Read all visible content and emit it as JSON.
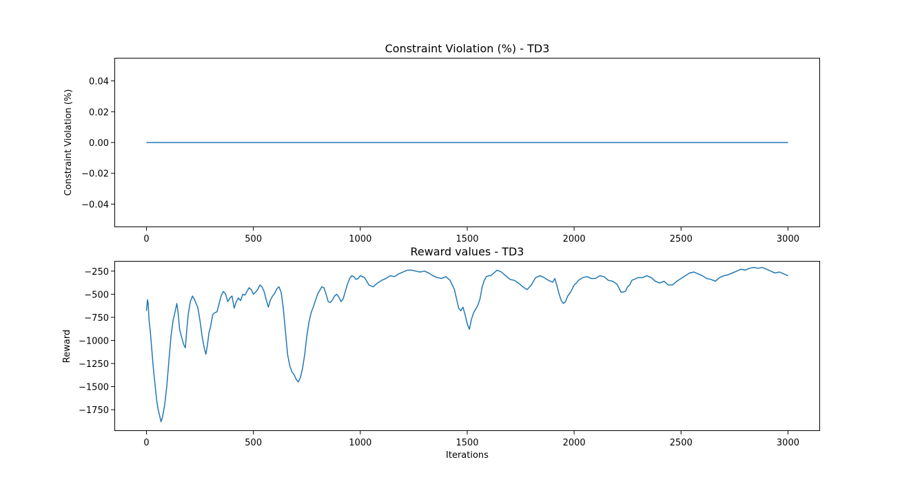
{
  "chart_data": [
    {
      "type": "line",
      "title": "Constraint Violation (%) - TD3",
      "xlabel": "",
      "ylabel": "Constraint Violation (%)",
      "xlim": [
        -150,
        3150
      ],
      "ylim": [
        -0.055,
        0.055
      ],
      "xticks": [
        0,
        500,
        1000,
        1500,
        2000,
        2500,
        3000
      ],
      "xtick_labels": [
        "0",
        "500",
        "1000",
        "1500",
        "2000",
        "2500",
        "3000"
      ],
      "yticks": [
        -0.04,
        -0.02,
        0.0,
        0.02,
        0.04
      ],
      "ytick_labels": [
        "−0.04",
        "−0.02",
        "0.00",
        "0.02",
        "0.04"
      ],
      "grid": false,
      "series": [
        {
          "color": "#1f77b4",
          "x": [
            0,
            3000
          ],
          "y": [
            0,
            0
          ]
        }
      ]
    },
    {
      "type": "line",
      "title": "Reward values - TD3",
      "xlabel": "Iterations",
      "ylabel": "Reward",
      "xlim": [
        -150,
        3150
      ],
      "ylim": [
        -1980,
        -140
      ],
      "xticks": [
        0,
        500,
        1000,
        1500,
        2000,
        2500,
        3000
      ],
      "xtick_labels": [
        "0",
        "500",
        "1000",
        "1500",
        "2000",
        "2500",
        "3000"
      ],
      "yticks": [
        -250,
        -500,
        -750,
        -1000,
        -1250,
        -1500,
        -1750
      ],
      "ytick_labels": [
        "−250",
        "−500",
        "−750",
        "−1000",
        "−1250",
        "−1500",
        "−1750"
      ],
      "grid": false,
      "series": [
        {
          "color": "#1f77b4",
          "x": [
            0,
            5,
            8,
            12,
            18,
            25,
            32,
            40,
            48,
            55,
            62,
            68,
            75,
            85,
            95,
            105,
            115,
            125,
            135,
            142,
            148,
            155,
            165,
            175,
            182,
            188,
            195,
            205,
            215,
            225,
            232,
            240,
            250,
            260,
            270,
            278,
            285,
            292,
            300,
            310,
            320,
            330,
            340,
            350,
            360,
            370,
            380,
            390,
            400,
            410,
            420,
            430,
            440,
            450,
            460,
            470,
            480,
            490,
            500,
            510,
            520,
            530,
            540,
            550,
            560,
            570,
            580,
            590,
            600,
            610,
            620,
            630,
            640,
            650,
            660,
            670,
            680,
            690,
            700,
            710,
            720,
            730,
            740,
            750,
            760,
            770,
            780,
            790,
            800,
            810,
            820,
            830,
            840,
            850,
            860,
            870,
            880,
            890,
            900,
            910,
            920,
            930,
            940,
            950,
            960,
            970,
            980,
            990,
            1000,
            1020,
            1040,
            1060,
            1080,
            1100,
            1120,
            1140,
            1160,
            1180,
            1200,
            1220,
            1240,
            1260,
            1280,
            1300,
            1320,
            1340,
            1360,
            1380,
            1400,
            1420,
            1440,
            1450,
            1460,
            1470,
            1480,
            1490,
            1500,
            1510,
            1520,
            1530,
            1540,
            1550,
            1560,
            1570,
            1580,
            1590,
            1600,
            1610,
            1620,
            1640,
            1660,
            1680,
            1700,
            1720,
            1740,
            1760,
            1780,
            1800,
            1820,
            1840,
            1860,
            1880,
            1900,
            1910,
            1920,
            1930,
            1940,
            1950,
            1960,
            1970,
            1980,
            1990,
            2000,
            2010,
            2020,
            2040,
            2060,
            2080,
            2100,
            2120,
            2140,
            2160,
            2180,
            2200,
            2220,
            2240,
            2250,
            2260,
            2270,
            2280,
            2300,
            2320,
            2340,
            2360,
            2380,
            2400,
            2420,
            2440,
            2460,
            2480,
            2500,
            2520,
            2540,
            2560,
            2580,
            2600,
            2620,
            2640,
            2660,
            2680,
            2700,
            2720,
            2740,
            2760,
            2780,
            2800,
            2820,
            2840,
            2860,
            2880,
            2900,
            2920,
            2940,
            2960,
            2980,
            3000
          ],
          "y": [
            -680,
            -560,
            -600,
            -780,
            -900,
            -1100,
            -1300,
            -1480,
            -1650,
            -1750,
            -1820,
            -1880,
            -1830,
            -1700,
            -1500,
            -1220,
            -950,
            -780,
            -680,
            -600,
            -700,
            -880,
            -970,
            -1050,
            -1080,
            -900,
            -720,
            -580,
            -520,
            -560,
            -600,
            -640,
            -780,
            -950,
            -1080,
            -1150,
            -1050,
            -920,
            -850,
            -720,
            -700,
            -690,
            -600,
            -510,
            -470,
            -500,
            -580,
            -540,
            -520,
            -650,
            -580,
            -540,
            -570,
            -500,
            -510,
            -470,
            -430,
            -450,
            -500,
            -480,
            -450,
            -400,
            -420,
            -470,
            -560,
            -640,
            -560,
            -520,
            -490,
            -440,
            -420,
            -480,
            -650,
            -900,
            -1150,
            -1270,
            -1340,
            -1370,
            -1420,
            -1450,
            -1400,
            -1300,
            -1150,
            -950,
            -800,
            -700,
            -640,
            -570,
            -500,
            -460,
            -420,
            -430,
            -500,
            -580,
            -590,
            -560,
            -520,
            -500,
            -530,
            -580,
            -550,
            -470,
            -390,
            -330,
            -300,
            -310,
            -340,
            -330,
            -300,
            -320,
            -400,
            -420,
            -380,
            -350,
            -330,
            -300,
            -310,
            -280,
            -260,
            -240,
            -240,
            -250,
            -260,
            -250,
            -270,
            -300,
            -320,
            -330,
            -310,
            -350,
            -450,
            -550,
            -650,
            -680,
            -640,
            -720,
            -820,
            -880,
            -770,
            -700,
            -660,
            -620,
            -550,
            -420,
            -350,
            -310,
            -300,
            -300,
            -280,
            -240,
            -260,
            -300,
            -340,
            -350,
            -380,
            -420,
            -450,
            -400,
            -320,
            -300,
            -320,
            -350,
            -370,
            -330,
            -410,
            -500,
            -570,
            -600,
            -580,
            -520,
            -490,
            -450,
            -400,
            -380,
            -350,
            -320,
            -310,
            -330,
            -330,
            -300,
            -310,
            -350,
            -360,
            -390,
            -480,
            -470,
            -420,
            -400,
            -350,
            -340,
            -320,
            -320,
            -300,
            -320,
            -360,
            -380,
            -360,
            -400,
            -400,
            -360,
            -330,
            -300,
            -270,
            -260,
            -280,
            -300,
            -330,
            -340,
            -360,
            -320,
            -300,
            -290,
            -270,
            -250,
            -230,
            -240,
            -220,
            -210,
            -220,
            -210,
            -230,
            -250,
            -270,
            -260,
            -280,
            -300
          ]
        }
      ]
    }
  ]
}
